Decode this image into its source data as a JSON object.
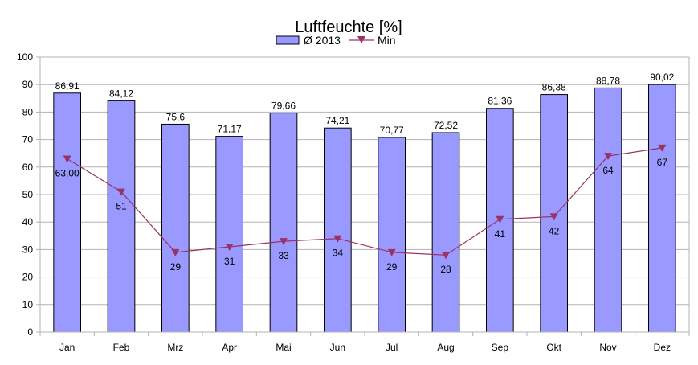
{
  "chart_data": {
    "type": "bar",
    "title": "Luftfeuchte [%]",
    "xlabel": "",
    "ylabel": "",
    "ylim": [
      0,
      100
    ],
    "yticks": [
      0,
      10,
      20,
      30,
      40,
      50,
      60,
      70,
      80,
      90,
      100
    ],
    "grid": true,
    "legend_position": "top",
    "categories": [
      "Jan",
      "Feb",
      "Mrz",
      "Apr",
      "Mai",
      "Jun",
      "Jul",
      "Aug",
      "Sep",
      "Okt",
      "Nov",
      "Dez"
    ],
    "series": [
      {
        "name": "Ø 2013",
        "type": "bar",
        "color": "#9999ff",
        "values": [
          86.91,
          84.12,
          75.6,
          71.17,
          79.66,
          74.21,
          70.77,
          72.52,
          81.36,
          86.38,
          88.78,
          90.02
        ],
        "labels": [
          "86,91",
          "84,12",
          "75,6",
          "71,17",
          "79,66",
          "74,21",
          "70,77",
          "72,52",
          "81,36",
          "86,38",
          "88,78",
          "90,02"
        ]
      },
      {
        "name": "Min",
        "type": "line",
        "color": "#993366",
        "values": [
          63,
          51,
          29,
          31,
          33,
          34,
          29,
          28,
          41,
          42,
          64,
          67
        ],
        "labels": [
          "63,00",
          "51",
          "29",
          "31",
          "33",
          "34",
          "29",
          "28",
          "41",
          "42",
          "64",
          "67"
        ]
      }
    ]
  }
}
